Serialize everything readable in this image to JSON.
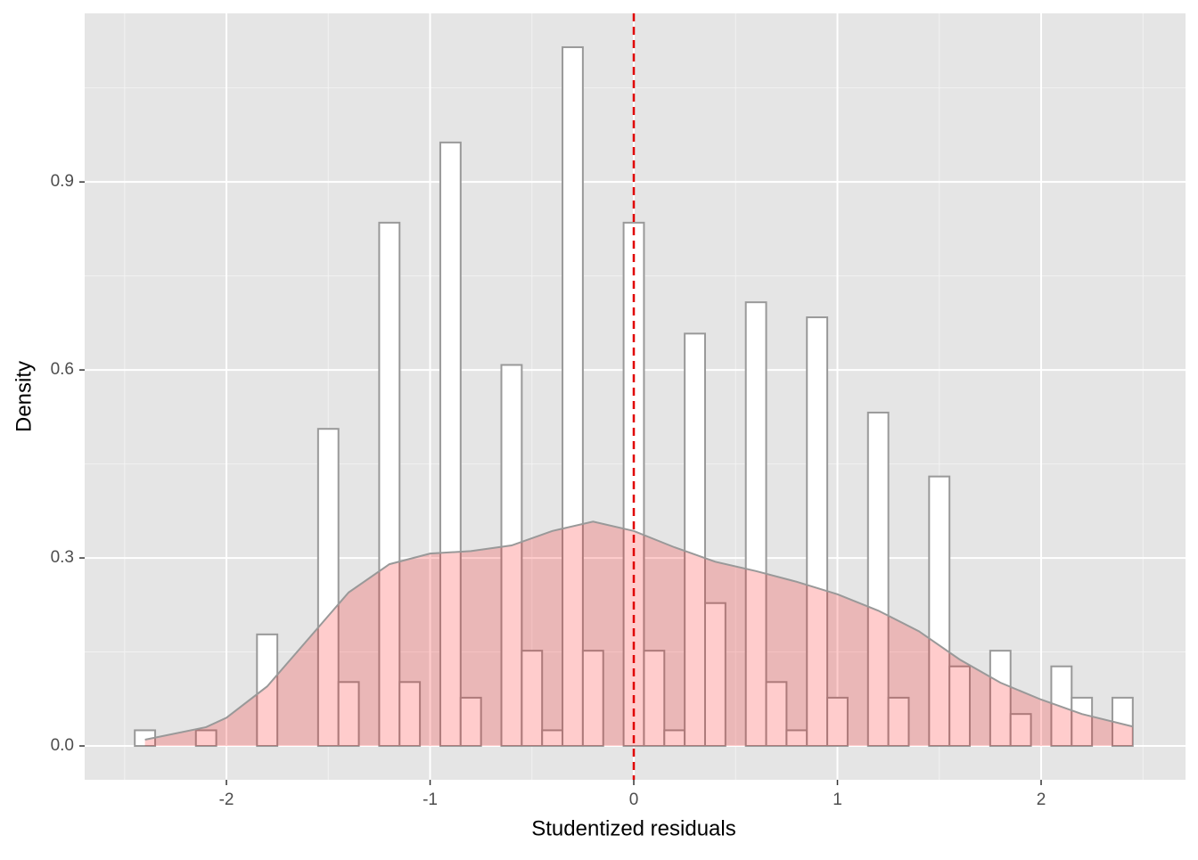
{
  "chart_data": {
    "type": "histogram",
    "xlabel": "Studentized residuals",
    "ylabel": "Density",
    "bins": [
      -2.45,
      -2.35,
      -2.25,
      -2.15,
      -2.05,
      -1.95,
      -1.85,
      -1.75,
      -1.65,
      -1.55,
      -1.45,
      -1.35,
      -1.25,
      -1.15,
      -1.05,
      -0.95,
      -0.85,
      -0.75,
      -0.65,
      -0.55,
      -0.45,
      -0.35,
      -0.25,
      -0.15,
      -0.05,
      0.05,
      0.15,
      0.25,
      0.35,
      0.45,
      0.55,
      0.65,
      0.75,
      0.85,
      0.95,
      1.05,
      1.15,
      1.25,
      1.35,
      1.45,
      1.55,
      1.65,
      1.75,
      1.85,
      1.95,
      2.05,
      2.15,
      2.25,
      2.35,
      2.45
    ],
    "values": [
      0.025,
      0,
      0,
      0.025,
      0,
      0,
      0.178,
      0,
      0,
      0.506,
      0.102,
      0,
      0.835,
      0.102,
      0,
      0.963,
      0.077,
      0,
      0.608,
      0.152,
      0.025,
      1.115,
      0.152,
      0,
      0.835,
      0.152,
      0.025,
      0.658,
      0.228,
      0,
      0.708,
      0.102,
      0.025,
      0.684,
      0.077,
      0,
      0.532,
      0.077,
      0,
      0.43,
      0.127,
      0,
      0.152,
      0.051,
      0,
      0.127,
      0.077,
      0,
      0.077
    ],
    "bar_fill": "#ffffff",
    "bar_edge": "#999999",
    "density": {
      "color": "#ff0000",
      "alpha": 0.2,
      "edge": "#999999",
      "x": [
        -2.4,
        -2.1,
        -2.0,
        -1.8,
        -1.6,
        -1.4,
        -1.2,
        -1.0,
        -0.8,
        -0.6,
        -0.4,
        -0.2,
        0,
        0.2,
        0.4,
        0.6,
        0.8,
        1.0,
        1.2,
        1.4,
        1.6,
        1.8,
        2.0,
        2.2,
        2.45
      ],
      "values": [
        0.01,
        0.03,
        0.045,
        0.095,
        0.17,
        0.245,
        0.29,
        0.307,
        0.311,
        0.32,
        0.343,
        0.358,
        0.343,
        0.317,
        0.294,
        0.279,
        0.262,
        0.242,
        0.216,
        0.183,
        0.138,
        0.101,
        0.074,
        0.051,
        0.031
      ]
    },
    "vline": {
      "x": 0,
      "color": "#e00000"
    },
    "xlim": [
      -2.696,
      2.709
    ],
    "ylim": [
      -0.054,
      1.169
    ],
    "xticks": [
      -2,
      -1,
      0,
      1,
      2
    ],
    "yticks": [
      {
        "value": 0,
        "label": "0.0"
      },
      0.3,
      0.6,
      0.9
    ],
    "xminor": [
      -2.5,
      -1.5,
      -0.5,
      0.5,
      1.5,
      2.5
    ],
    "yminor": [
      0.15,
      0.45,
      0.75,
      1.05
    ],
    "grid": true
  }
}
